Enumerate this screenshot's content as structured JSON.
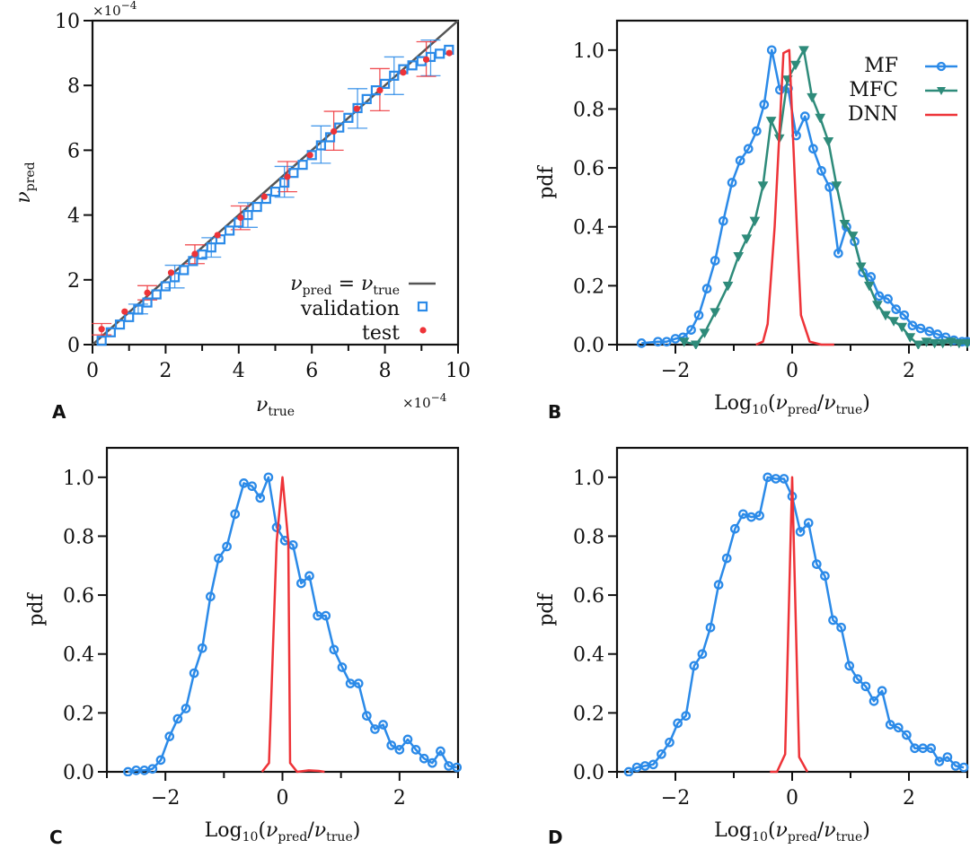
{
  "colors": {
    "mf": "#2b8ae8",
    "mfc": "#2e8b7a",
    "dnn": "#ee3338",
    "identity": "#555555",
    "validation": "#2b8ae8",
    "test": "#ee3338",
    "axis": "#111111"
  },
  "chart_data": [
    {
      "panel": "A",
      "type": "scatter",
      "title": "",
      "xlabel": "ν_true",
      "ylabel": "ν_pred",
      "multiplier_label": "×10⁻⁴",
      "xlim": [
        0,
        10
      ],
      "ylim": [
        0,
        10
      ],
      "xticks": [
        "0",
        "2",
        "4",
        "6",
        "8",
        "10"
      ],
      "yticks": [
        "0",
        "2",
        "4",
        "6",
        "8",
        "10"
      ],
      "legend": {
        "position": "bottom-right",
        "entries": [
          "ν_pred = ν_true",
          "validation",
          "test"
        ]
      },
      "identity_line": [
        [
          0,
          0
        ],
        [
          10,
          10
        ]
      ],
      "validation": {
        "x": [
          0.25,
          0.5,
          0.75,
          1.0,
          1.25,
          1.5,
          1.75,
          2.0,
          2.25,
          2.5,
          2.75,
          3.0,
          3.25,
          3.5,
          3.75,
          4.0,
          4.25,
          4.5,
          4.75,
          5.0,
          5.25,
          5.5,
          5.75,
          6.0,
          6.25,
          6.5,
          6.75,
          7.0,
          7.25,
          7.5,
          7.75,
          8.0,
          8.25,
          8.5,
          8.75,
          9.0,
          9.25,
          9.5,
          9.75
        ],
        "y": [
          0.12,
          0.38,
          0.62,
          0.85,
          1.08,
          1.3,
          1.55,
          1.8,
          2.08,
          2.3,
          2.58,
          2.78,
          3.0,
          3.25,
          3.52,
          3.77,
          4.0,
          4.25,
          4.5,
          4.72,
          5.0,
          5.3,
          5.55,
          5.85,
          6.15,
          6.4,
          6.7,
          7.0,
          7.3,
          7.58,
          7.85,
          8.05,
          8.3,
          8.5,
          8.62,
          8.75,
          8.88,
          8.98,
          9.1
        ],
        "err_x": [
          1.25,
          2.25,
          3.25,
          4.25,
          5.25,
          6.25,
          7.25,
          8.25,
          9.25
        ],
        "err_low": [
          0.95,
          1.75,
          2.7,
          3.62,
          4.55,
          5.6,
          6.68,
          7.72,
          8.3
        ],
        "err_high": [
          1.25,
          2.45,
          3.3,
          4.38,
          5.5,
          6.75,
          7.9,
          8.88,
          9.4
        ]
      },
      "test": {
        "x": [
          0.25,
          0.88,
          1.5,
          2.15,
          2.8,
          3.42,
          4.05,
          4.7,
          5.33,
          5.95,
          6.6,
          7.23,
          7.86,
          8.5,
          9.13,
          9.76
        ],
        "y": [
          0.48,
          1.02,
          1.6,
          2.22,
          2.8,
          3.38,
          3.92,
          4.57,
          5.18,
          5.85,
          6.58,
          7.28,
          7.85,
          8.4,
          8.8,
          9.0
        ],
        "err_x": [
          0.25,
          1.5,
          2.8,
          4.05,
          5.33,
          6.6,
          7.86,
          9.13
        ],
        "err_low": [
          0.3,
          1.38,
          2.5,
          3.55,
          4.72,
          6.0,
          7.22,
          8.28
        ],
        "err_high": [
          0.65,
          1.82,
          3.08,
          4.28,
          5.65,
          7.2,
          8.52,
          9.35
        ]
      }
    },
    {
      "panel": "B",
      "type": "line",
      "xlabel": "Log10(ν_pred/ν_true)",
      "ylabel": "pdf",
      "xlim": [
        -3,
        3
      ],
      "ylim": [
        0,
        1.1
      ],
      "xticks": [
        "−2",
        "0",
        "2"
      ],
      "yticks": [
        "0.0",
        "0.2",
        "0.4",
        "0.6",
        "0.8",
        "1.0"
      ],
      "legend": {
        "position": "top-right",
        "entries": [
          "MF",
          "MFC",
          "DNN"
        ]
      },
      "series": [
        {
          "name": "MF",
          "x": [
            -2.58,
            -2.3,
            -2.15,
            -2.0,
            -1.87,
            -1.73,
            -1.6,
            -1.46,
            -1.32,
            -1.18,
            -1.03,
            -0.89,
            -0.75,
            -0.61,
            -0.48,
            -0.35,
            -0.21,
            -0.07,
            0.07,
            0.22,
            0.36,
            0.5,
            0.64,
            0.79,
            0.93,
            1.07,
            1.21,
            1.35,
            1.49,
            1.64,
            1.78,
            1.92,
            2.06,
            2.2,
            2.35,
            2.49,
            2.63,
            2.77,
            2.91,
            3.0
          ],
          "y": [
            0.005,
            0.01,
            0.01,
            0.02,
            0.025,
            0.05,
            0.1,
            0.19,
            0.285,
            0.42,
            0.55,
            0.625,
            0.665,
            0.725,
            0.815,
            1.0,
            0.865,
            0.87,
            0.71,
            0.775,
            0.665,
            0.59,
            0.535,
            0.31,
            0.4,
            0.35,
            0.245,
            0.23,
            0.165,
            0.155,
            0.12,
            0.1,
            0.065,
            0.055,
            0.045,
            0.035,
            0.025,
            0.015,
            0.01,
            0.01
          ],
          "marker": "circle"
        },
        {
          "name": "MFC",
          "x": [
            -1.85,
            -1.65,
            -1.5,
            -1.32,
            -1.1,
            -0.92,
            -0.78,
            -0.64,
            -0.5,
            -0.36,
            -0.22,
            -0.08,
            0.06,
            0.2,
            0.34,
            0.48,
            0.62,
            0.76,
            0.9,
            1.04,
            1.18,
            1.32,
            1.46,
            1.6,
            1.74,
            1.88,
            2.02,
            2.16,
            2.3,
            2.44,
            2.58,
            2.72,
            2.86,
            3.0
          ],
          "y": [
            0.01,
            0.0,
            0.04,
            0.11,
            0.2,
            0.3,
            0.36,
            0.42,
            0.54,
            0.76,
            0.7,
            0.9,
            0.95,
            1.0,
            0.84,
            0.77,
            0.69,
            0.54,
            0.41,
            0.37,
            0.265,
            0.2,
            0.135,
            0.1,
            0.08,
            0.06,
            0.025,
            0.0,
            0.01,
            0.005,
            0.005,
            0.01,
            0.005,
            0.005
          ],
          "marker": "triangle-down"
        },
        {
          "name": "DNN",
          "x": [
            -0.62,
            -0.5,
            -0.42,
            -0.3,
            -0.15,
            -0.05,
            0.08,
            0.15,
            0.3,
            0.5,
            0.72
          ],
          "y": [
            0.0,
            0.01,
            0.07,
            0.4,
            0.99,
            1.0,
            0.4,
            0.1,
            0.01,
            0.0,
            0.0
          ],
          "marker": "none"
        }
      ]
    },
    {
      "panel": "C",
      "type": "line",
      "xlabel": "Log10(ν_pred/ν_true)",
      "ylabel": "pdf",
      "xlim": [
        -3,
        3
      ],
      "ylim": [
        0,
        1.1
      ],
      "xticks": [
        "−2",
        "0",
        "2"
      ],
      "yticks": [
        "0.0",
        "0.2",
        "0.4",
        "0.6",
        "0.8",
        "1.0"
      ],
      "series": [
        {
          "name": "MF",
          "x": [
            -2.64,
            -2.5,
            -2.36,
            -2.22,
            -2.08,
            -1.93,
            -1.79,
            -1.65,
            -1.51,
            -1.37,
            -1.23,
            -1.09,
            -0.95,
            -0.81,
            -0.66,
            -0.52,
            -0.38,
            -0.24,
            -0.1,
            0.04,
            0.18,
            0.32,
            0.46,
            0.6,
            0.74,
            0.88,
            1.02,
            1.16,
            1.3,
            1.44,
            1.58,
            1.72,
            1.86,
            2.0,
            2.14,
            2.28,
            2.42,
            2.56,
            2.7,
            2.84,
            2.98
          ],
          "y": [
            0.0,
            0.005,
            0.005,
            0.01,
            0.04,
            0.12,
            0.18,
            0.215,
            0.335,
            0.42,
            0.595,
            0.725,
            0.765,
            0.875,
            0.98,
            0.97,
            0.93,
            1.0,
            0.83,
            0.785,
            0.77,
            0.64,
            0.665,
            0.53,
            0.53,
            0.415,
            0.355,
            0.3,
            0.3,
            0.19,
            0.145,
            0.16,
            0.09,
            0.075,
            0.11,
            0.075,
            0.045,
            0.03,
            0.07,
            0.02,
            0.015
          ],
          "marker": "circle"
        },
        {
          "name": "DNN",
          "x": [
            -0.35,
            -0.23,
            -0.1,
            0.0,
            0.1,
            0.13,
            0.25,
            0.45,
            0.62,
            0.72
          ],
          "y": [
            0.0,
            0.03,
            0.78,
            1.0,
            0.78,
            0.03,
            0.0,
            0.005,
            0.003,
            0.0
          ],
          "marker": "none"
        }
      ]
    },
    {
      "panel": "D",
      "type": "line",
      "xlabel": "Log10(ν_pred/ν_true)",
      "ylabel": "pdf",
      "xlim": [
        -3,
        3
      ],
      "ylim": [
        0,
        1.1
      ],
      "xticks": [
        "−2",
        "0",
        "2"
      ],
      "yticks": [
        "0.0",
        "0.2",
        "0.4",
        "0.6",
        "0.8",
        "1.0"
      ],
      "series": [
        {
          "name": "MF",
          "x": [
            -2.8,
            -2.66,
            -2.52,
            -2.38,
            -2.24,
            -2.1,
            -1.96,
            -1.82,
            -1.68,
            -1.54,
            -1.4,
            -1.26,
            -1.12,
            -0.98,
            -0.84,
            -0.7,
            -0.56,
            -0.42,
            -0.28,
            -0.14,
            0.0,
            0.14,
            0.28,
            0.42,
            0.56,
            0.7,
            0.84,
            0.98,
            1.12,
            1.26,
            1.4,
            1.54,
            1.68,
            1.82,
            1.96,
            2.1,
            2.24,
            2.38,
            2.52,
            2.66,
            2.8,
            2.94
          ],
          "y": [
            0.0,
            0.015,
            0.02,
            0.025,
            0.06,
            0.1,
            0.165,
            0.19,
            0.36,
            0.4,
            0.49,
            0.635,
            0.725,
            0.825,
            0.875,
            0.865,
            0.87,
            1.0,
            0.995,
            0.995,
            0.935,
            0.815,
            0.845,
            0.705,
            0.665,
            0.515,
            0.49,
            0.36,
            0.315,
            0.29,
            0.24,
            0.275,
            0.16,
            0.15,
            0.125,
            0.08,
            0.08,
            0.08,
            0.035,
            0.05,
            0.02,
            0.015
          ],
          "marker": "circle"
        },
        {
          "name": "DNN",
          "x": [
            -0.38,
            -0.26,
            -0.12,
            0.0,
            0.12,
            0.26
          ],
          "y": [
            0.0,
            0.0,
            0.06,
            1.0,
            0.05,
            0.0
          ],
          "marker": "none"
        }
      ]
    }
  ],
  "panels": {
    "A": {
      "letter": "A"
    },
    "B": {
      "letter": "B"
    },
    "C": {
      "letter": "C"
    },
    "D": {
      "letter": "D"
    }
  }
}
